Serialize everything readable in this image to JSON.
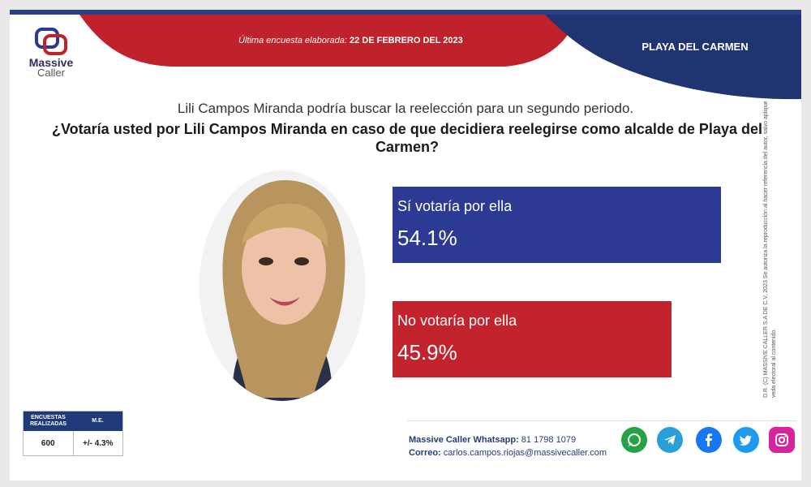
{
  "header": {
    "logo_line1": "Massive",
    "logo_line2": "Caller",
    "date_label": "Última encuesta elaborada:",
    "date_value": "22 DE FEBRERO DEL 2023",
    "location": "PLAYA DEL CARMEN"
  },
  "question": {
    "intro": "Lili Campos Miranda podría buscar la reelección para un segundo periodo.",
    "main": "¿Votaría usted por Lili Campos Miranda en caso de que decidiera reelegirse como alcalde de Playa del Carmen?"
  },
  "chart_data": {
    "type": "bar",
    "categories": [
      "Sí votaría por ella",
      "No votaría por ella"
    ],
    "values": [
      54.1,
      45.9
    ],
    "value_labels": [
      "54.1%",
      "45.9%"
    ],
    "colors": [
      "#2d3a94",
      "#c3232d"
    ]
  },
  "stats": {
    "col1_header": "ENCUESTAS REALIZADAS",
    "col2_header": "M.E.",
    "col1_value": "600",
    "col2_value": "+/- 4.3%"
  },
  "contact": {
    "whatsapp_label": "Massive Caller Whatsapp:",
    "whatsapp_value": "81 1798 1079",
    "email_label": "Correo:",
    "email_value": "carlos.campos.riojas@massivecaller.com"
  },
  "copyright": "D.R. (C) MASSIVE CALLER S.A DE C.V, 2023 Se autoriza la reproducción al hacer referencia del autor, salvo aplique veda electoral al contenido.",
  "social_icons": [
    "whatsapp-icon",
    "telegram-icon",
    "facebook-icon",
    "twitter-icon",
    "instagram-icon"
  ]
}
